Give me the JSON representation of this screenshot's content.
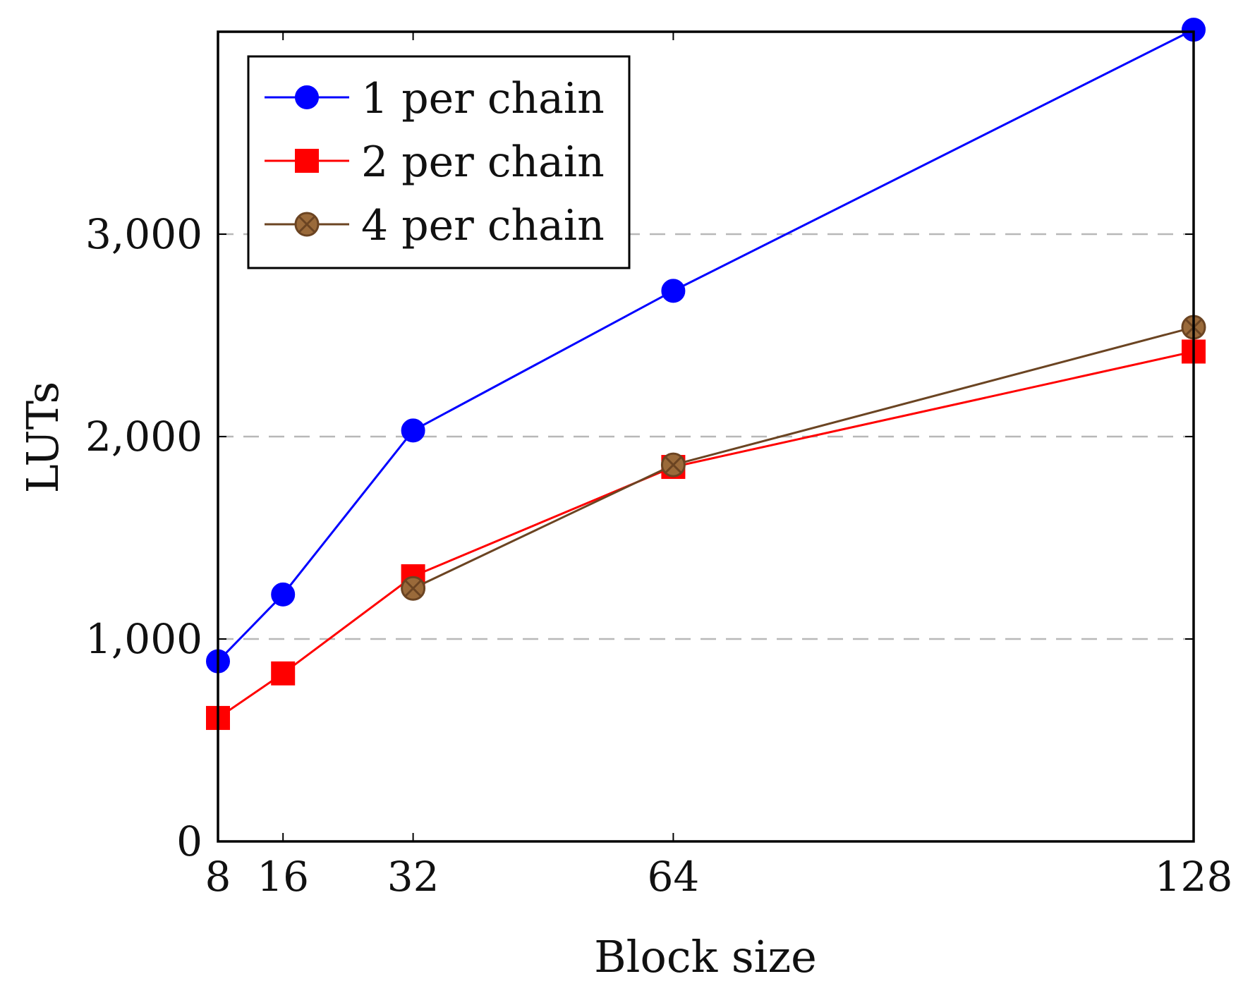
{
  "chart_data": {
    "type": "line",
    "xlabel": "Block size",
    "ylabel": "LUTs",
    "title": "",
    "x_ticks": [
      "8",
      "16",
      "32",
      "64",
      "128"
    ],
    "y_ticks": [
      "0",
      "1,000",
      "2,000",
      "3,000"
    ],
    "xlim": [
      8,
      128
    ],
    "ylim": [
      0,
      4000
    ],
    "grid": "horizontal dashed",
    "legend_position": "top-left",
    "series": [
      {
        "name": "1 per chain",
        "color": "#0000ff",
        "marker": "circle",
        "x": [
          8,
          16,
          32,
          64,
          128
        ],
        "y": [
          890,
          1220,
          2030,
          2720,
          4010
        ]
      },
      {
        "name": "2 per chain",
        "color": "#ff0000",
        "marker": "square",
        "x": [
          8,
          16,
          32,
          64,
          128
        ],
        "y": [
          610,
          830,
          1310,
          1850,
          2420
        ]
      },
      {
        "name": "4 per chain",
        "color": "#6b4422",
        "marker": "circle-x",
        "x": [
          32,
          64,
          128
        ],
        "y": [
          1250,
          1860,
          2540
        ]
      }
    ]
  }
}
